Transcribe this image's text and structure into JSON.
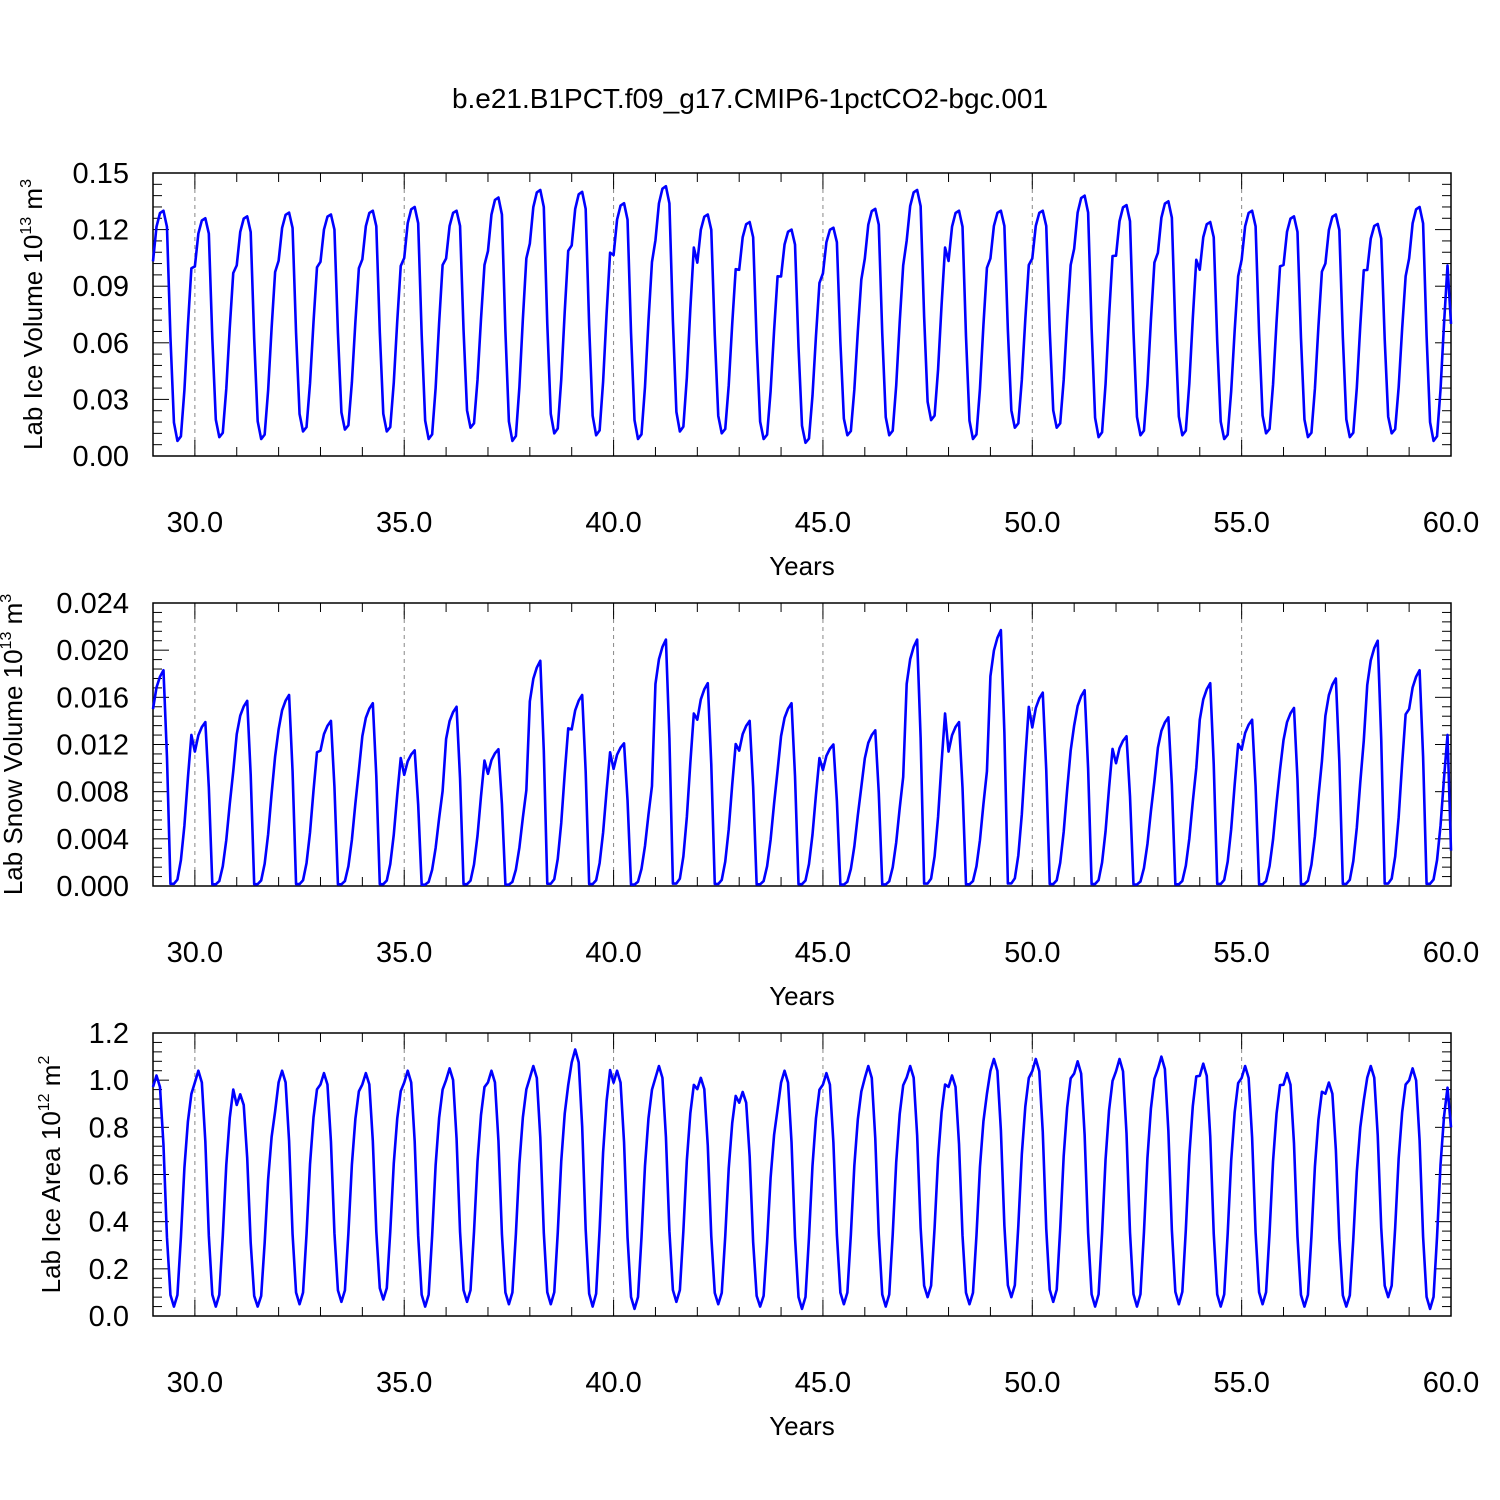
{
  "figure": {
    "title": "b.e21.B1PCT.f09_g17.CMIP6-1pctCO2-bgc.001"
  },
  "chart_data": [
    {
      "type": "line",
      "title": "b.e21.B1PCT.f09_g17.CMIP6-1pctCO2-bgc.001",
      "xlabel": "Years",
      "ylabel": "Lab Ice Volume 10",
      "ylabel_exp": "13",
      "ylabel_unit": " m",
      "ylabel_unit_exp": "3",
      "xlim": [
        29.0,
        60.0
      ],
      "ylim": [
        0.0,
        0.15
      ],
      "xticks": [
        30,
        35,
        40,
        45,
        50,
        55,
        60
      ],
      "xtick_labels": [
        "30.0",
        "35.0",
        "40.0",
        "45.0",
        "50.0",
        "55.0",
        "60.0"
      ],
      "yticks": [
        0.0,
        0.03,
        0.06,
        0.09,
        0.12,
        0.15
      ],
      "ytick_labels": [
        "0.00",
        "0.03",
        "0.06",
        "0.09",
        "0.12",
        "0.15"
      ],
      "grid": "dashed vertical at major x ticks",
      "line_color": "#0000ff",
      "series": [
        {
          "start_year": 29.0,
          "samples_per_year": 12,
          "peak_month": 3,
          "peak_values": [
            0.13,
            0.126,
            0.127,
            0.129,
            0.128,
            0.13,
            0.132,
            0.13,
            0.137,
            0.141,
            0.14,
            0.134,
            0.143,
            0.128,
            0.124,
            0.12,
            0.121,
            0.131,
            0.141,
            0.13,
            0.13,
            0.13,
            0.138,
            0.133,
            0.135,
            0.124,
            0.13,
            0.127,
            0.128,
            0.123,
            0.132
          ],
          "min_values": [
            0.008,
            0.01,
            0.009,
            0.013,
            0.014,
            0.013,
            0.009,
            0.015,
            0.008,
            0.012,
            0.011,
            0.009,
            0.013,
            0.012,
            0.009,
            0.007,
            0.011,
            0.011,
            0.019,
            0.009,
            0.015,
            0.015,
            0.01,
            0.011,
            0.011,
            0.009,
            0.012,
            0.01,
            0.01,
            0.012,
            0.008
          ],
          "end_value": 0.07
        }
      ]
    },
    {
      "type": "line",
      "xlabel": "Years",
      "ylabel": "Lab Snow Volume 10",
      "ylabel_exp": "13",
      "ylabel_unit": " m",
      "ylabel_unit_exp": "3",
      "xlim": [
        29.0,
        60.0
      ],
      "ylim": [
        0.0,
        0.024
      ],
      "xticks": [
        30,
        35,
        40,
        45,
        50,
        55,
        60
      ],
      "xtick_labels": [
        "30.0",
        "35.0",
        "40.0",
        "45.0",
        "50.0",
        "55.0",
        "60.0"
      ],
      "yticks": [
        0.0,
        0.004,
        0.008,
        0.012,
        0.016,
        0.02,
        0.024
      ],
      "ytick_labels": [
        "0.000",
        "0.004",
        "0.008",
        "0.012",
        "0.016",
        "0.020",
        "0.024"
      ],
      "grid": "dashed vertical at major x ticks",
      "line_color": "#0000ff",
      "series": [
        {
          "start_year": 29.0,
          "samples_per_year": 12,
          "peak_month": 4,
          "peak_values": [
            0.0183,
            0.0139,
            0.0157,
            0.0162,
            0.014,
            0.0155,
            0.0115,
            0.0152,
            0.0116,
            0.0191,
            0.0162,
            0.0121,
            0.0209,
            0.0172,
            0.014,
            0.0155,
            0.012,
            0.0132,
            0.0209,
            0.0139,
            0.0217,
            0.0164,
            0.0166,
            0.0127,
            0.0143,
            0.0172,
            0.0141,
            0.0151,
            0.0176,
            0.0208,
            0.0183
          ],
          "end_value": 0.003
        }
      ]
    },
    {
      "type": "line",
      "xlabel": "Years",
      "ylabel": "Lab Ice Area 10",
      "ylabel_exp": "12",
      "ylabel_unit": " m",
      "ylabel_unit_exp": "2",
      "xlim": [
        29.0,
        60.0
      ],
      "ylim": [
        0.0,
        1.2
      ],
      "xticks": [
        30,
        35,
        40,
        45,
        50,
        55,
        60
      ],
      "xtick_labels": [
        "30.0",
        "35.0",
        "40.0",
        "45.0",
        "50.0",
        "55.0",
        "60.0"
      ],
      "yticks": [
        0.0,
        0.2,
        0.4,
        0.6,
        0.8,
        1.0,
        1.2
      ],
      "ytick_labels": [
        "0.0",
        "0.2",
        "0.4",
        "0.6",
        "0.8",
        "1.0",
        "1.2"
      ],
      "grid": "dashed vertical at major x ticks",
      "line_color": "#0000ff",
      "series": [
        {
          "start_year": 29.0,
          "samples_per_year": 12,
          "peak_month": 1,
          "peak_values": [
            1.02,
            1.04,
            0.94,
            1.04,
            1.03,
            1.03,
            1.04,
            1.05,
            1.04,
            1.06,
            1.13,
            1.04,
            1.06,
            1.01,
            0.95,
            1.04,
            1.03,
            1.06,
            1.06,
            1.02,
            1.09,
            1.09,
            1.08,
            1.09,
            1.1,
            1.07,
            1.06,
            1.03,
            0.99,
            1.06,
            1.05
          ],
          "min_values": [
            0.04,
            0.04,
            0.04,
            0.05,
            0.06,
            0.07,
            0.04,
            0.06,
            0.05,
            0.05,
            0.04,
            0.03,
            0.06,
            0.05,
            0.04,
            0.03,
            0.05,
            0.04,
            0.08,
            0.05,
            0.08,
            0.06,
            0.04,
            0.04,
            0.05,
            0.04,
            0.05,
            0.04,
            0.04,
            0.08,
            0.03
          ],
          "end_value": 0.8
        }
      ]
    }
  ]
}
